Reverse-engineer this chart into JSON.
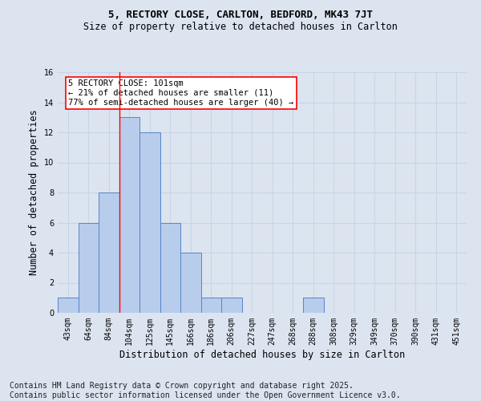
{
  "title1": "5, RECTORY CLOSE, CARLTON, BEDFORD, MK43 7JT",
  "title2": "Size of property relative to detached houses in Carlton",
  "xlabel": "Distribution of detached houses by size in Carlton",
  "ylabel": "Number of detached properties",
  "bins": [
    "43sqm",
    "64sqm",
    "84sqm",
    "104sqm",
    "125sqm",
    "145sqm",
    "166sqm",
    "186sqm",
    "206sqm",
    "227sqm",
    "247sqm",
    "268sqm",
    "288sqm",
    "308sqm",
    "329sqm",
    "349sqm",
    "370sqm",
    "390sqm",
    "431sqm",
    "451sqm"
  ],
  "values": [
    1,
    6,
    8,
    13,
    12,
    6,
    4,
    1,
    1,
    0,
    0,
    0,
    1,
    0,
    0,
    0,
    0,
    0,
    0,
    0
  ],
  "bar_color": "#b8cceb",
  "bar_edge_color": "#5586c8",
  "grid_color": "#c8d4e8",
  "background_color": "#dce4f0",
  "redline_bin_index": 3,
  "annotation_text": "5 RECTORY CLOSE: 101sqm\n← 21% of detached houses are smaller (11)\n77% of semi-detached houses are larger (40) →",
  "annotation_box_color": "white",
  "annotation_box_edge": "red",
  "ylim": [
    0,
    16
  ],
  "yticks": [
    0,
    2,
    4,
    6,
    8,
    10,
    12,
    14,
    16
  ],
  "footer": "Contains HM Land Registry data © Crown copyright and database right 2025.\nContains public sector information licensed under the Open Government Licence v3.0.",
  "footer_fontsize": 7,
  "title1_fontsize": 9,
  "title2_fontsize": 8.5,
  "ylabel_fontsize": 8.5,
  "xlabel_fontsize": 8.5,
  "tick_fontsize": 7,
  "annot_fontsize": 7.5
}
